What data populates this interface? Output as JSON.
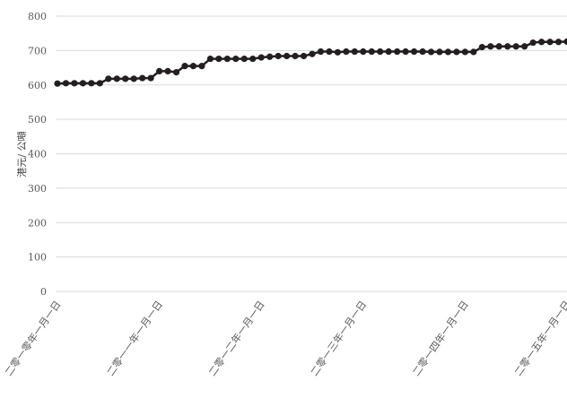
{
  "chart_data": {
    "type": "line",
    "ylabel": "港元/ 公噸",
    "ylim": [
      0,
      800
    ],
    "yticks": [
      0,
      100,
      200,
      300,
      400,
      500,
      600,
      700,
      800
    ],
    "grid": true,
    "xticks": [
      "二零一零年一月一日",
      "二零一一年一月一日",
      "二零一二年一月一日",
      "二零一三年一月一日",
      "二零一四年一月一日",
      "二零一五年一月一日"
    ],
    "series": [
      {
        "color": "#231f20",
        "values": [
          604,
          605,
          605,
          605,
          605,
          605,
          618,
          618,
          618,
          618,
          620,
          620,
          640,
          640,
          637,
          655,
          655,
          655,
          676,
          676,
          676,
          676,
          676,
          676,
          680,
          682,
          684,
          684,
          684,
          684,
          690,
          697,
          697,
          695,
          697,
          697,
          697,
          697,
          697,
          697,
          697,
          697,
          697,
          697,
          696,
          696,
          696,
          696,
          696,
          696,
          710,
          712,
          712,
          712,
          712,
          712,
          723,
          725,
          725,
          725,
          726
        ]
      }
    ]
  }
}
